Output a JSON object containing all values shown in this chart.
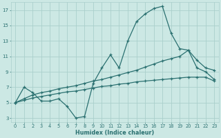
{
  "xlabel": "Humidex (Indice chaleur)",
  "bg_color": "#cce8e4",
  "grid_color": "#aacfcc",
  "line_color": "#2a7070",
  "xlim": [
    -0.5,
    23.5
  ],
  "ylim": [
    2.5,
    18
  ],
  "xticks": [
    0,
    1,
    2,
    3,
    4,
    5,
    6,
    7,
    8,
    9,
    10,
    11,
    12,
    13,
    14,
    15,
    16,
    17,
    18,
    19,
    20,
    21,
    22,
    23
  ],
  "yticks": [
    3,
    5,
    7,
    9,
    11,
    13,
    15,
    17
  ],
  "line1_x": [
    0,
    1,
    2,
    3,
    4,
    5,
    6,
    7,
    8,
    9,
    10,
    11,
    12,
    13,
    14,
    15,
    16,
    17,
    18,
    19,
    20,
    21,
    22,
    23
  ],
  "line1_y": [
    5.0,
    7.0,
    6.3,
    5.2,
    5.2,
    5.5,
    4.5,
    3.0,
    3.2,
    7.5,
    9.5,
    11.2,
    9.5,
    13.0,
    15.5,
    16.5,
    17.2,
    17.5,
    14.0,
    12.0,
    11.8,
    9.5,
    9.0,
    8.0
  ],
  "line2_x": [
    0,
    1,
    2,
    3,
    4,
    5,
    6,
    7,
    8,
    9,
    10,
    11,
    12,
    13,
    14,
    15,
    16,
    17,
    18,
    19,
    20,
    21,
    22,
    23
  ],
  "line2_y": [
    5.0,
    5.3,
    5.6,
    5.8,
    6.0,
    6.2,
    6.4,
    6.5,
    6.7,
    6.9,
    7.1,
    7.2,
    7.4,
    7.5,
    7.7,
    7.8,
    7.9,
    8.0,
    8.1,
    8.2,
    8.3,
    8.3,
    8.3,
    7.8
  ],
  "line3_x": [
    0,
    1,
    2,
    3,
    4,
    5,
    6,
    7,
    8,
    9,
    10,
    11,
    12,
    13,
    14,
    15,
    16,
    17,
    18,
    19,
    20,
    21,
    22,
    23
  ],
  "line3_y": [
    5.0,
    5.5,
    6.0,
    6.3,
    6.5,
    6.8,
    7.0,
    7.2,
    7.5,
    7.8,
    8.0,
    8.3,
    8.6,
    8.9,
    9.2,
    9.6,
    10.0,
    10.4,
    10.7,
    11.0,
    11.8,
    10.5,
    9.5,
    9.2
  ]
}
